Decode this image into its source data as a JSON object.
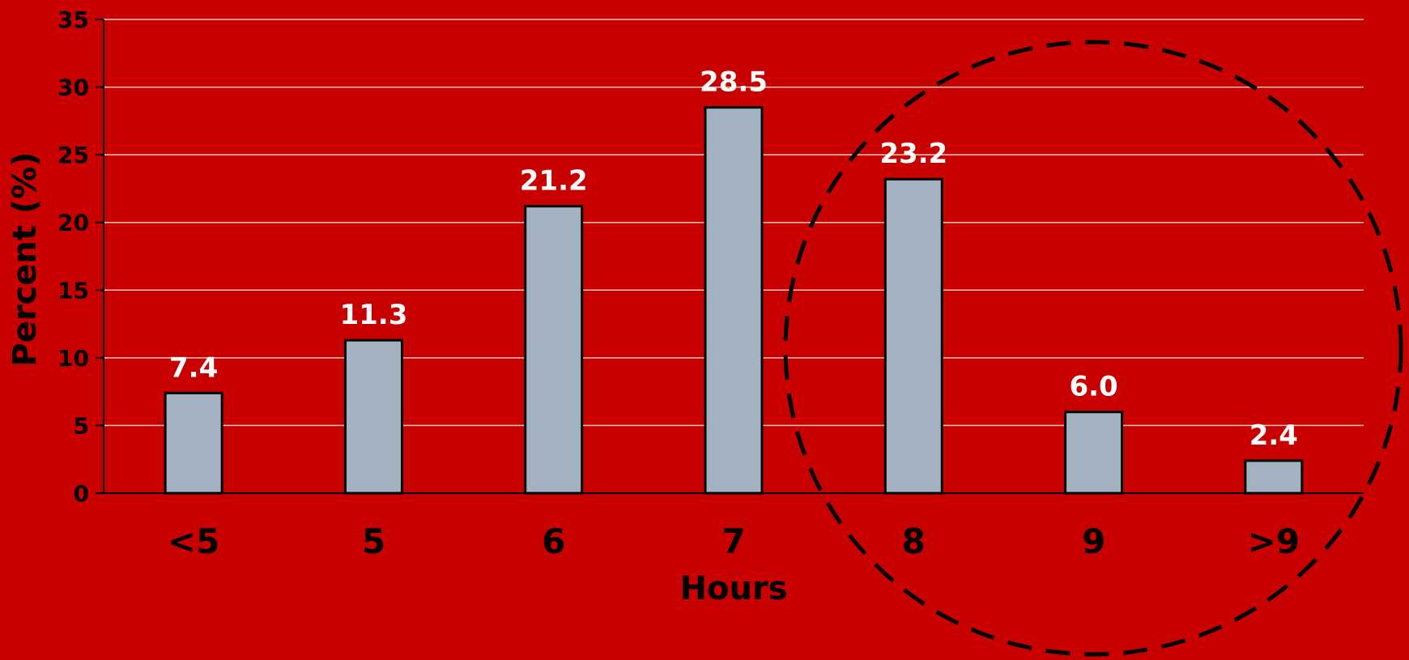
{
  "chart_data": {
    "type": "bar",
    "categories": [
      "<5",
      "5",
      "6",
      "7",
      "8",
      "9",
      ">9"
    ],
    "values": [
      7.4,
      11.3,
      21.2,
      28.5,
      23.2,
      6.0,
      2.4
    ],
    "data_labels": [
      "7.4",
      "11.3",
      "21.2",
      "28.5",
      "23.2",
      "6.0",
      "2.4"
    ],
    "xlabel": "Hours",
    "ylabel": "Percent (%)",
    "ylim": [
      0,
      35
    ],
    "yticks": [
      0,
      5,
      10,
      15,
      20,
      25,
      30,
      35
    ],
    "grid": true,
    "highlight": {
      "shape": "dashed-ellipse",
      "categories": [
        "8",
        "9",
        ">9"
      ]
    },
    "colors": {
      "background": "#c80000",
      "bar_fill": "#a3b2c0",
      "bar_stroke": "#000000",
      "gridline": "#f0c8c8",
      "data_label": "#ffffff",
      "text": "#000000"
    }
  }
}
